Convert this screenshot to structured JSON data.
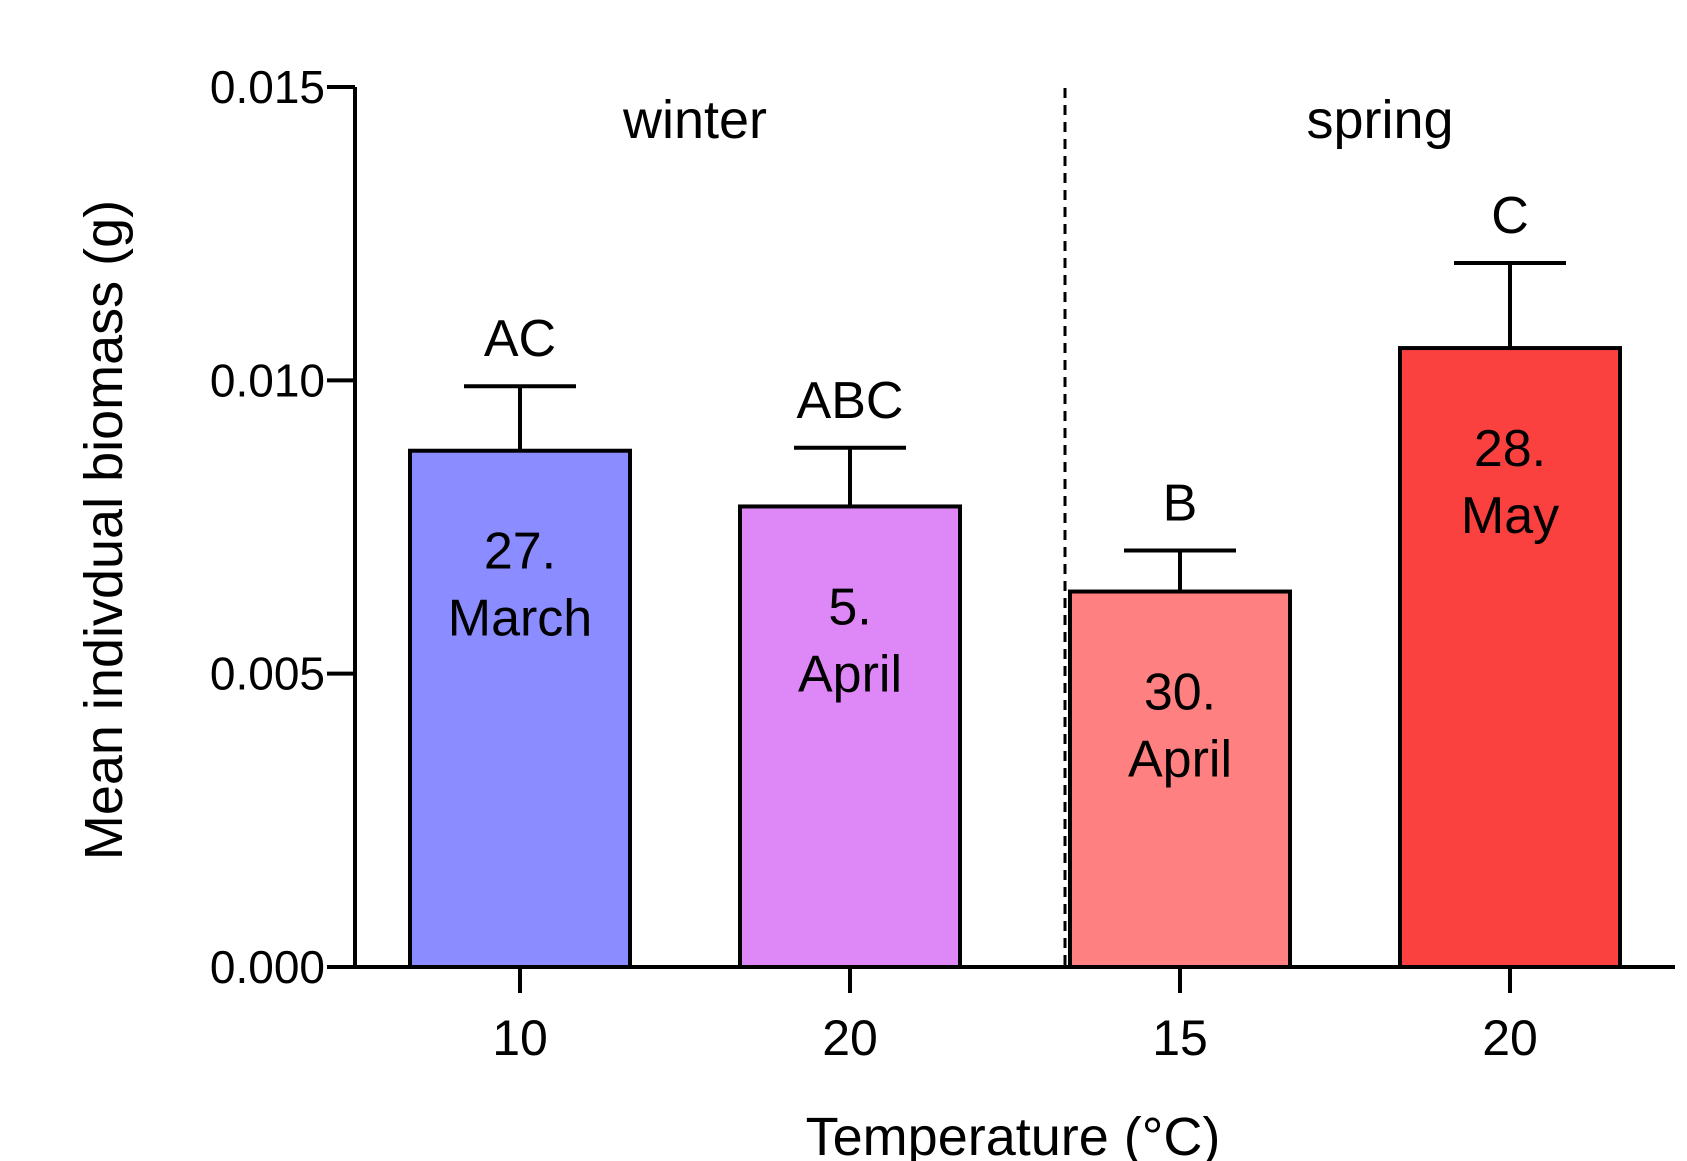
{
  "chart_data": {
    "type": "bar",
    "title": "",
    "xlabel": "Temperature (°C)",
    "ylabel": "Mean indivdual biomass (g)",
    "ylim": [
      0,
      0.015
    ],
    "yticks": [
      "0.000",
      "0.005",
      "0.010",
      "0.015"
    ],
    "categories": [
      "10",
      "20",
      "15",
      "20"
    ],
    "values": [
      0.0088,
      0.00785,
      0.0064,
      0.01055
    ],
    "errors": [
      0.0011,
      0.001,
      0.0007,
      0.00145
    ],
    "bar_colors": [
      "#8b8cff",
      "#dd88f6",
      "#ff8080",
      "#fb4040"
    ],
    "bar_labels": [
      [
        "27.",
        "March"
      ],
      [
        "5.",
        "April"
      ],
      [
        "30.",
        "April"
      ],
      [
        "28.",
        "May"
      ]
    ],
    "significance": [
      "AC",
      "ABC",
      "B",
      "C"
    ],
    "groups": [
      {
        "label": "winter",
        "bars": [
          0,
          1
        ]
      },
      {
        "label": "spring",
        "bars": [
          2,
          3
        ]
      }
    ],
    "grid": false,
    "legend": "none"
  }
}
